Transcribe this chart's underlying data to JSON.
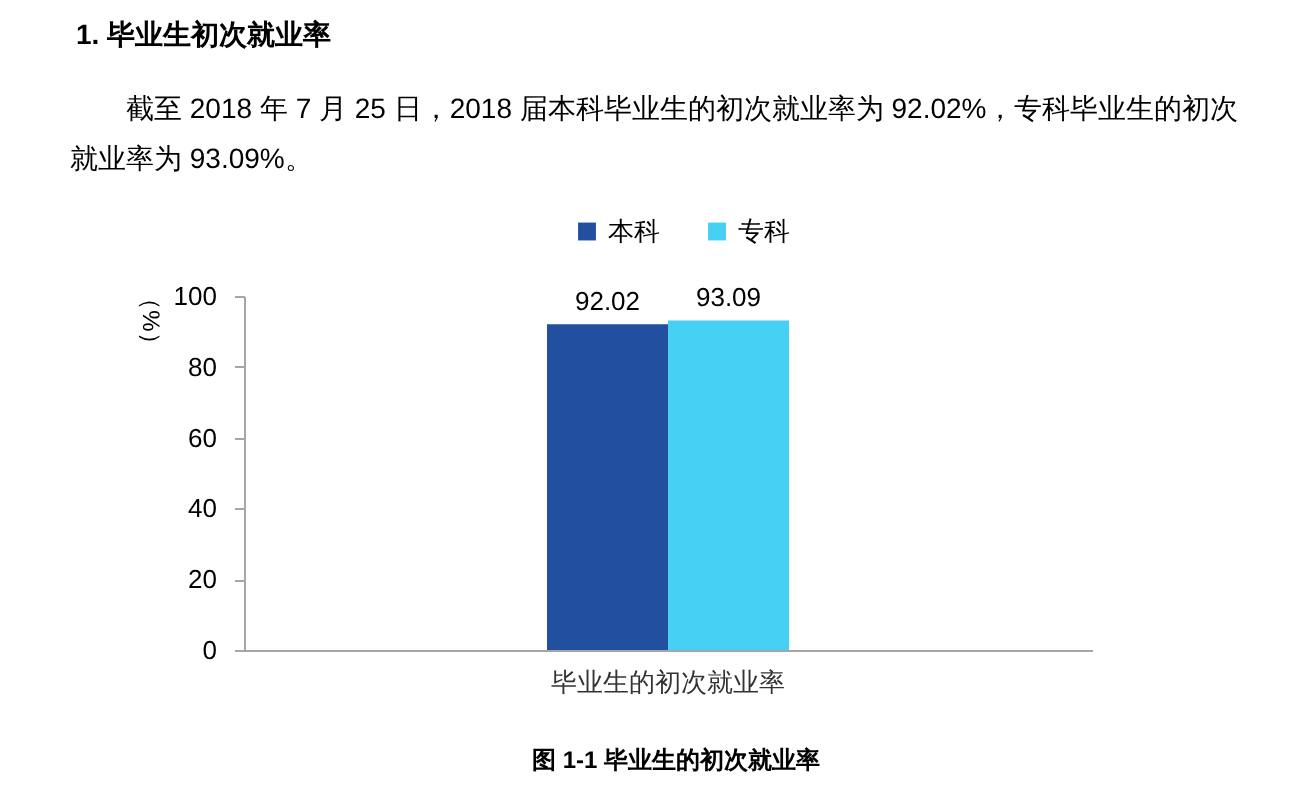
{
  "chart_data": {
    "type": "bar",
    "title": "1. 毕业生初次就业率",
    "subtitle": "截至 2018 年 7 月 25 日，2018 届本科毕业生的初次就业率为 92.02%，专科毕业生的初次就业率为 93.09%。",
    "ylabel": "（%）",
    "annotations": [
      "图 1-1 毕业生的初次就业率"
    ],
    "categories": [
      "毕业生的初次就业率"
    ],
    "series": [
      {
        "name": "本科",
        "color": "#23509e",
        "values": [
          92.02
        ]
      },
      {
        "name": "专科",
        "color": "#46d0f3",
        "values": [
          93.09
        ]
      }
    ],
    "ylim": [
      0,
      100
    ],
    "yticks": [
      0,
      20,
      40,
      60,
      80,
      100
    ],
    "data_labels": true,
    "legend": "top",
    "grid": false
  }
}
